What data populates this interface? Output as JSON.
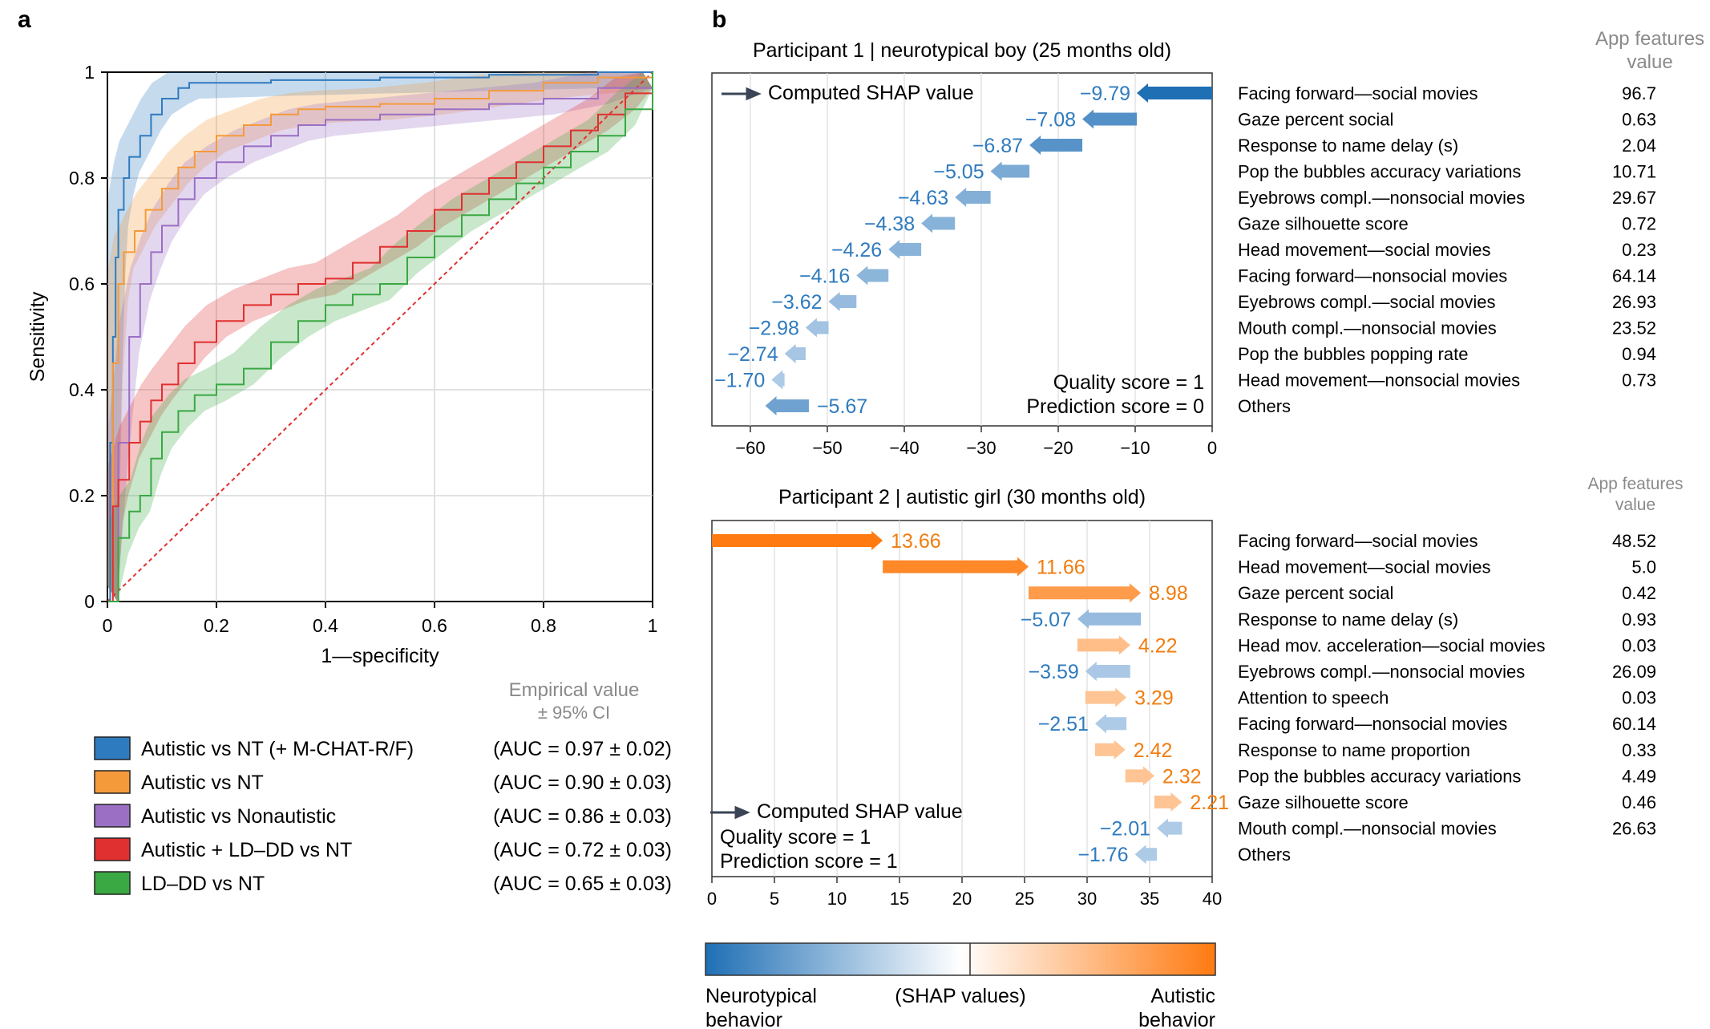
{
  "panels": {
    "a": "a",
    "b": "b"
  },
  "colors": {
    "blue": "#2f7bbf",
    "orange": "#f59a3b",
    "purple": "#9b6fc4",
    "red": "#e03030",
    "green": "#3aa843",
    "text_blue": "#2f7bbf",
    "text_orange": "#f07d10",
    "arrow_dark": "#3a4456"
  },
  "chart_data": [
    {
      "type": "line",
      "id": "roc",
      "xlabel": "1—specificity",
      "ylabel": "Sensitivity",
      "xlim": [
        0,
        1
      ],
      "ylim": [
        0,
        1
      ],
      "xticks": [
        "0",
        "0.2",
        "0.4",
        "0.6",
        "0.8",
        "1"
      ],
      "yticks": [
        "0",
        "0.2",
        "0.4",
        "0.6",
        "0.8",
        "1"
      ],
      "grid": true,
      "legend_header": [
        "Empirical value",
        "± 95% CI"
      ],
      "series": [
        {
          "name": "Autistic vs NT (+ M-CHAT-R/F)",
          "auc": "(AUC = 0.97 ± 0.02)",
          "color": "#2f7bbf",
          "x": [
            0,
            0.005,
            0.01,
            0.015,
            0.02,
            0.03,
            0.04,
            0.06,
            0.08,
            0.1,
            0.13,
            0.15,
            0.3,
            0.5,
            0.7,
            0.9,
            1
          ],
          "y": [
            0,
            0.3,
            0.5,
            0.65,
            0.74,
            0.8,
            0.84,
            0.88,
            0.92,
            0.95,
            0.97,
            0.98,
            0.985,
            0.99,
            0.995,
            1,
            1
          ]
        },
        {
          "name": "Autistic vs NT",
          "auc": "(AUC = 0.90 ± 0.03)",
          "color": "#f59a3b",
          "x": [
            0,
            0.01,
            0.02,
            0.03,
            0.05,
            0.07,
            0.1,
            0.13,
            0.16,
            0.2,
            0.25,
            0.3,
            0.35,
            0.4,
            0.5,
            0.6,
            0.7,
            0.8,
            0.9,
            1
          ],
          "y": [
            0,
            0.45,
            0.6,
            0.66,
            0.7,
            0.74,
            0.78,
            0.82,
            0.85,
            0.88,
            0.9,
            0.92,
            0.93,
            0.935,
            0.94,
            0.95,
            0.965,
            0.98,
            0.99,
            1
          ]
        },
        {
          "name": "Autistic vs Nonautistic",
          "auc": "(AUC = 0.86 ± 0.03)",
          "color": "#9b6fc4",
          "x": [
            0,
            0.02,
            0.04,
            0.06,
            0.08,
            0.1,
            0.13,
            0.16,
            0.2,
            0.25,
            0.3,
            0.35,
            0.4,
            0.5,
            0.6,
            0.7,
            0.8,
            0.9,
            1
          ],
          "y": [
            0,
            0.3,
            0.5,
            0.6,
            0.66,
            0.71,
            0.76,
            0.8,
            0.83,
            0.86,
            0.88,
            0.9,
            0.91,
            0.92,
            0.93,
            0.94,
            0.95,
            0.97,
            1
          ]
        },
        {
          "name": "Autistic + LD–DD vs NT",
          "auc": "(AUC = 0.72 ± 0.03)",
          "color": "#e03030",
          "x": [
            0,
            0.01,
            0.02,
            0.04,
            0.06,
            0.08,
            0.1,
            0.13,
            0.16,
            0.2,
            0.25,
            0.3,
            0.35,
            0.4,
            0.45,
            0.5,
            0.55,
            0.6,
            0.65,
            0.7,
            0.75,
            0.8,
            0.85,
            0.9,
            0.95,
            1
          ],
          "y": [
            0,
            0.18,
            0.23,
            0.3,
            0.34,
            0.38,
            0.41,
            0.45,
            0.49,
            0.53,
            0.56,
            0.58,
            0.6,
            0.61,
            0.64,
            0.67,
            0.7,
            0.74,
            0.77,
            0.8,
            0.83,
            0.86,
            0.89,
            0.92,
            0.96,
            1
          ]
        },
        {
          "name": "LD–DD vs NT",
          "auc": "(AUC = 0.65 ± 0.03)",
          "color": "#3aa843",
          "x": [
            0,
            0.02,
            0.04,
            0.06,
            0.08,
            0.1,
            0.13,
            0.16,
            0.2,
            0.25,
            0.3,
            0.35,
            0.4,
            0.45,
            0.5,
            0.55,
            0.6,
            0.65,
            0.7,
            0.75,
            0.8,
            0.85,
            0.9,
            0.95,
            1
          ],
          "y": [
            0,
            0.12,
            0.17,
            0.2,
            0.27,
            0.32,
            0.36,
            0.39,
            0.41,
            0.44,
            0.49,
            0.53,
            0.56,
            0.58,
            0.6,
            0.65,
            0.69,
            0.73,
            0.76,
            0.79,
            0.82,
            0.85,
            0.88,
            0.93,
            1
          ]
        }
      ],
      "diagonal": {
        "color": "#e03030",
        "style": "dashed"
      }
    },
    {
      "type": "bar",
      "id": "shap1",
      "title": "Participant 1 | neurotypical boy (25 months old)",
      "legend": "Computed SHAP value",
      "xlim": [
        -65,
        0
      ],
      "xticks": [
        "−60",
        "−50",
        "−40",
        "−30",
        "−20",
        "−10",
        "0"
      ],
      "annotations": [
        "Quality score = 1",
        "Prediction score = 0"
      ],
      "feature_header": [
        "App features",
        "value"
      ],
      "features": [
        "Facing forward—social movies",
        "Gaze percent social",
        "Response to name delay (s)",
        "Pop the bubbles accuracy variations",
        "Eyebrows compl.—nonsocial movies",
        "Gaze silhouette score",
        "Head movement—social movies",
        "Facing forward—nonsocial movies",
        "Eyebrows compl.—social movies",
        "Mouth compl.—nonsocial movies",
        "Pop the bubbles popping rate",
        "Head movement—nonsocial movies",
        "Others"
      ],
      "feature_values": [
        "96.7",
        "0.63",
        "2.04",
        "10.71",
        "29.67",
        "0.72",
        "0.23",
        "64.14",
        "26.93",
        "23.52",
        "0.94",
        "0.73",
        ""
      ],
      "values": [
        -9.79,
        -7.08,
        -6.87,
        -5.05,
        -4.63,
        -4.38,
        -4.26,
        -4.16,
        -3.62,
        -2.98,
        -2.74,
        -1.7,
        -5.67
      ],
      "value_labels": [
        "−9.79",
        "−7.08",
        "−6.87",
        "−5.05",
        "−4.63",
        "−4.38",
        "−4.26",
        "−4.16",
        "−3.62",
        "−2.98",
        "−2.74",
        "−1.70",
        "−5.67"
      ]
    },
    {
      "type": "bar",
      "id": "shap2",
      "title": "Participant 2 | autistic girl (30 months old)",
      "legend": "Computed SHAP value",
      "xlim": [
        0,
        40
      ],
      "xticks": [
        "0",
        "5",
        "10",
        "15",
        "20",
        "25",
        "30",
        "35",
        "40"
      ],
      "annotations": [
        "Quality score = 1",
        "Prediction score = 1"
      ],
      "feature_header": [
        "App features",
        "value"
      ],
      "features": [
        "Facing forward—social movies",
        "Head movement—social movies",
        "Gaze percent social",
        "Response to name delay (s)",
        "Head mov. acceleration—social movies",
        "Eyebrows compl.—nonsocial movies",
        "Attention to speech",
        "Facing forward—nonsocial movies",
        "Response to name proportion",
        "Pop the bubbles accuracy variations",
        "Gaze silhouette score",
        "Mouth compl.—nonsocial movies",
        "Others"
      ],
      "feature_values": [
        "48.52",
        "5.0",
        "0.42",
        "0.93",
        "0.03",
        "26.09",
        "0.03",
        "60.14",
        "0.33",
        "4.49",
        "0.46",
        "26.63",
        ""
      ],
      "values": [
        13.66,
        11.66,
        8.98,
        -5.07,
        4.22,
        -3.59,
        3.29,
        -2.51,
        2.42,
        2.32,
        2.21,
        -2.01,
        -1.76
      ],
      "value_labels": [
        "13.66",
        "11.66",
        "8.98",
        "−5.07",
        "4.22",
        "−3.59",
        "3.29",
        "−2.51",
        "2.42",
        "2.32",
        "2.21",
        "−2.01",
        "−1.76"
      ]
    }
  ],
  "colorbar": {
    "left_label": [
      "Neurotypical",
      "behavior"
    ],
    "center_label": "(SHAP values)",
    "right_label": [
      "Autistic",
      "behavior"
    ],
    "colors": [
      "#1f6fb5",
      "#ffffff",
      "#ff7a10"
    ]
  }
}
